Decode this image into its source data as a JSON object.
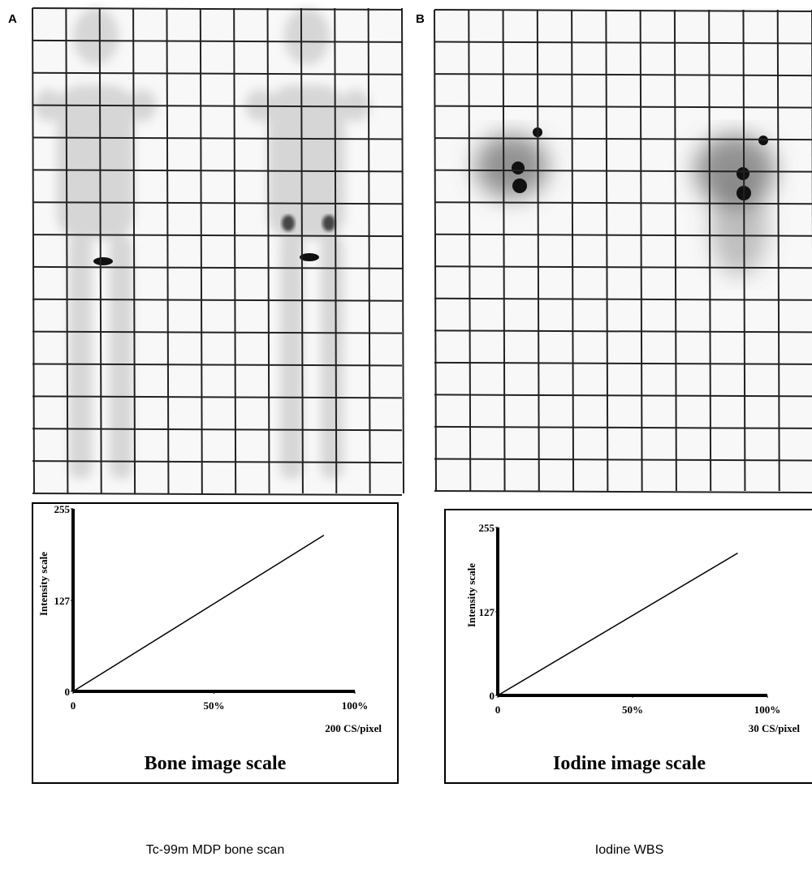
{
  "panels": [
    {
      "label": "A",
      "caption": "Tc-99m MDP bone scan"
    },
    {
      "label": "B",
      "caption": "Iodine WBS"
    }
  ],
  "chart_data": [
    {
      "type": "line",
      "title": "Bone image scale",
      "y_label": "Intensity scale",
      "x_unit_label": "200 CS/pixel",
      "x": [
        0,
        89
      ],
      "values": [
        0,
        218
      ],
      "color": "#000000",
      "xlim": [
        0,
        100
      ],
      "ylim": [
        0,
        255
      ],
      "xticks": [
        0,
        {
          "value": 50,
          "label": "50%"
        },
        {
          "value": 100,
          "label": "100%"
        }
      ],
      "yticks": [
        0,
        127,
        255
      ]
    },
    {
      "type": "line",
      "title": "Iodine image scale",
      "y_label": "Intensity scale",
      "x_unit_label": "30 CS/pixel",
      "x": [
        0,
        89
      ],
      "values": [
        0,
        216
      ],
      "color": "#000000",
      "xlim": [
        0,
        100
      ],
      "ylim": [
        0,
        255
      ],
      "xticks": [
        0,
        {
          "value": 50,
          "label": "50%"
        },
        {
          "value": 100,
          "label": "100%"
        }
      ],
      "yticks": [
        0,
        127,
        255
      ]
    }
  ]
}
